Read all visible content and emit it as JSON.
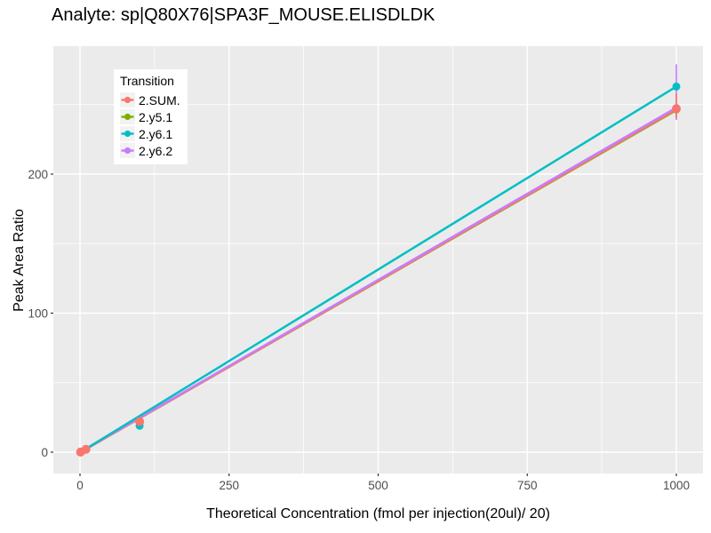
{
  "chart_data": {
    "type": "scatter",
    "title": "Analyte: sp|Q80X76|SPA3F_MOUSE.ELISDLDK",
    "xlabel": "Theoretical Concentration (fmol per injection(20ul)/ 20)",
    "ylabel": "Peak Area Ratio",
    "legend_title": "Transition",
    "legend_position": "inside-top-left",
    "xlim": [
      -40,
      1042
    ],
    "ylim": [
      -15,
      292
    ],
    "x_major_ticks": [
      0,
      250,
      500,
      750,
      1000
    ],
    "x_minor_ticks": [
      125,
      375,
      625,
      875
    ],
    "y_major_ticks": [
      0,
      100,
      200
    ],
    "y_minor_ticks": [
      50,
      150,
      250
    ],
    "grid": true,
    "colors": {
      "panel_bg": "#EBEBEB",
      "grid": "#FFFFFF",
      "tick_label": "#4D4D4D",
      "tick_mark": "#333333",
      "legend_key_bg": "#F2F2F2"
    },
    "series": [
      {
        "name": "2.SUM.",
        "color": "#F8766D",
        "points": [
          [
            1,
            0
          ],
          [
            10,
            2
          ],
          [
            100,
            22
          ],
          [
            1000,
            247
          ]
        ],
        "line": [
          [
            1,
            0
          ],
          [
            1000,
            246.5
          ]
        ],
        "errorbar": {
          "x": 1000,
          "ymin": 240,
          "ymax": 258
        }
      },
      {
        "name": "2.y5.1",
        "color": "#7CAE00",
        "points": [
          [
            1,
            0
          ],
          [
            10,
            2
          ],
          [
            100,
            21.5
          ],
          [
            1000,
            246.5
          ]
        ],
        "line": [
          [
            1,
            0
          ],
          [
            1000,
            246
          ]
        ]
      },
      {
        "name": "2.y6.1",
        "color": "#00BFC4",
        "points": [
          [
            1,
            0
          ],
          [
            10,
            2
          ],
          [
            100,
            19
          ],
          [
            1000,
            263
          ]
        ],
        "line": [
          [
            1,
            0
          ],
          [
            1000,
            263
          ]
        ]
      },
      {
        "name": "2.y6.2",
        "color": "#C77CFF",
        "points": [
          [
            1,
            0.5
          ],
          [
            10,
            2.4
          ],
          [
            100,
            22
          ],
          [
            1000,
            247.5
          ]
        ],
        "line": [
          [
            1,
            0.3
          ],
          [
            1000,
            247.8
          ]
        ],
        "errorbar": {
          "x": 1000,
          "ymin": 239,
          "ymax": 279
        }
      }
    ]
  }
}
